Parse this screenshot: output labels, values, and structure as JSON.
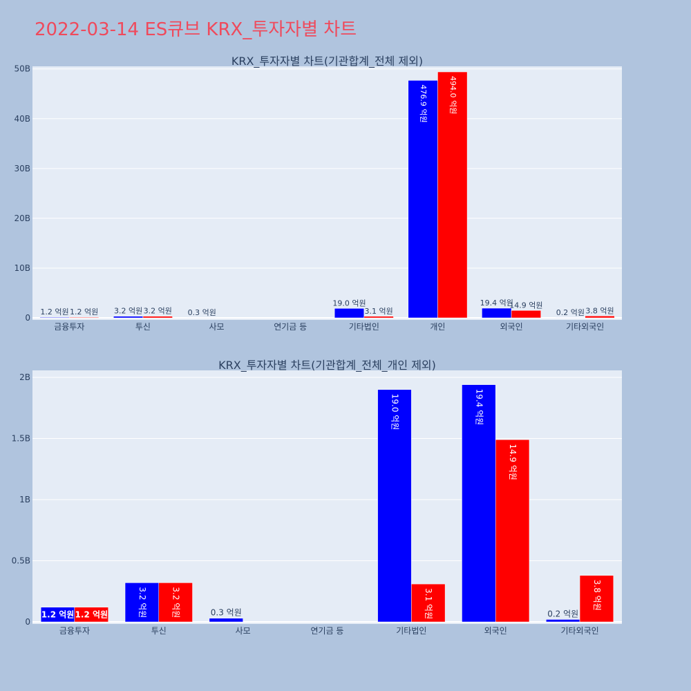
{
  "page_title": "2022-03-14 ES큐브 KRX_투자자별 차트",
  "colors": {
    "series_a": "#0000ff",
    "series_b": "#ff0000",
    "plot_bg": "#e5ecf6",
    "page_bg": "#b0c4de",
    "title": "#ef4a5c"
  },
  "chart_data": [
    {
      "type": "bar",
      "title": "KRX_투자자별 차트(기관합계_전체 제외)",
      "categories": [
        "금융투자",
        "투신",
        "사모",
        "연기금 등",
        "기타법인",
        "개인",
        "외국인",
        "기타외국인"
      ],
      "series": [
        {
          "color": "#0000ff",
          "values": [
            0.12,
            0.32,
            0.03,
            0,
            1.9,
            47.69,
            1.94,
            0.02
          ],
          "labels": [
            "1.2 억원",
            "3.2 억원",
            "0.3 억원",
            "",
            "19.0 억원",
            "476.9 억원",
            "19.4 억원",
            "0.2 억원"
          ]
        },
        {
          "color": "#ff0000",
          "values": [
            0.12,
            0.32,
            0,
            0,
            0.31,
            49.4,
            1.49,
            0.38
          ],
          "labels": [
            "1.2 억원",
            "3.2 억원",
            "",
            "",
            "3.1 억원",
            "494.0 억원",
            "14.9 억원",
            "3.8 억원"
          ]
        }
      ],
      "yticks": [
        0,
        10,
        20,
        30,
        40,
        50
      ],
      "ytick_labels": [
        "0",
        "10B",
        "20B",
        "30B",
        "40B",
        "50B"
      ],
      "ylim": [
        0,
        50.1
      ],
      "grid": true
    },
    {
      "type": "bar",
      "title": "KRX_투자자별 차트(기관합계_전체_개인 제외)",
      "categories": [
        "금융투자",
        "투신",
        "사모",
        "연기금 등",
        "기타법인",
        "외국인",
        "기타외국인"
      ],
      "series": [
        {
          "color": "#0000ff",
          "values": [
            0.12,
            0.32,
            0.03,
            0,
            1.9,
            1.94,
            0.02
          ],
          "labels": [
            "1.2 억원",
            "3.2 억원",
            "0.3 억원",
            "",
            "19.0 억원",
            "19.4 억원",
            "0.2 억원"
          ]
        },
        {
          "color": "#ff0000",
          "values": [
            0.12,
            0.32,
            0,
            0,
            0.31,
            1.49,
            0.38
          ],
          "labels": [
            "1.2 억원",
            "3.2 억원",
            "",
            "",
            "3.1 억원",
            "14.9 억원",
            "3.8 억원"
          ]
        }
      ],
      "yticks": [
        0,
        0.5,
        1,
        1.5,
        2
      ],
      "ytick_labels": [
        "0",
        "0.5B",
        "1B",
        "1.5B",
        "2B"
      ],
      "ylim": [
        0,
        2.04
      ],
      "grid": true
    }
  ]
}
